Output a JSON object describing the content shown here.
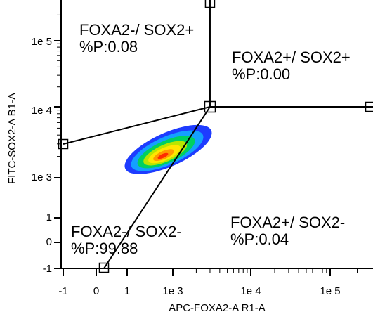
{
  "chart_data": {
    "type": "scatter",
    "subtype": "flow-cytometry density plot with quadrant gates",
    "xlabel": "APC-FOXA2-A R1-A",
    "ylabel": "FITC-SOX2-A B1-A",
    "x_scale": "biexponential",
    "y_scale": "biexponential",
    "x_ticks": [
      "-1",
      "0",
      "1",
      "1e 3",
      "1e 4",
      "1e 5"
    ],
    "y_ticks": [
      "-1",
      "0",
      "1",
      "1e 3",
      "1e 4",
      "1e 5"
    ],
    "gate_center": {
      "x": 3000,
      "y": 10000
    },
    "quadrants": [
      {
        "name": "FOXA2-/ SOX2+",
        "value": "%P:0.08"
      },
      {
        "name": "FOXA2+/ SOX2+",
        "value": "%P:0.00"
      },
      {
        "name": "FOXA2-/ SOX2-",
        "value": "%P:99.88"
      },
      {
        "name": "FOXA2+/ SOX2-",
        "value": "%P:0.04"
      }
    ],
    "population": {
      "peak_x": 500,
      "peak_y": 2500
    },
    "density_colors": [
      "#1e3cff",
      "#14a0ff",
      "#00d060",
      "#b8e600",
      "#ffe600",
      "#ff9900",
      "#ff2a00"
    ],
    "line_color": "#000000"
  }
}
